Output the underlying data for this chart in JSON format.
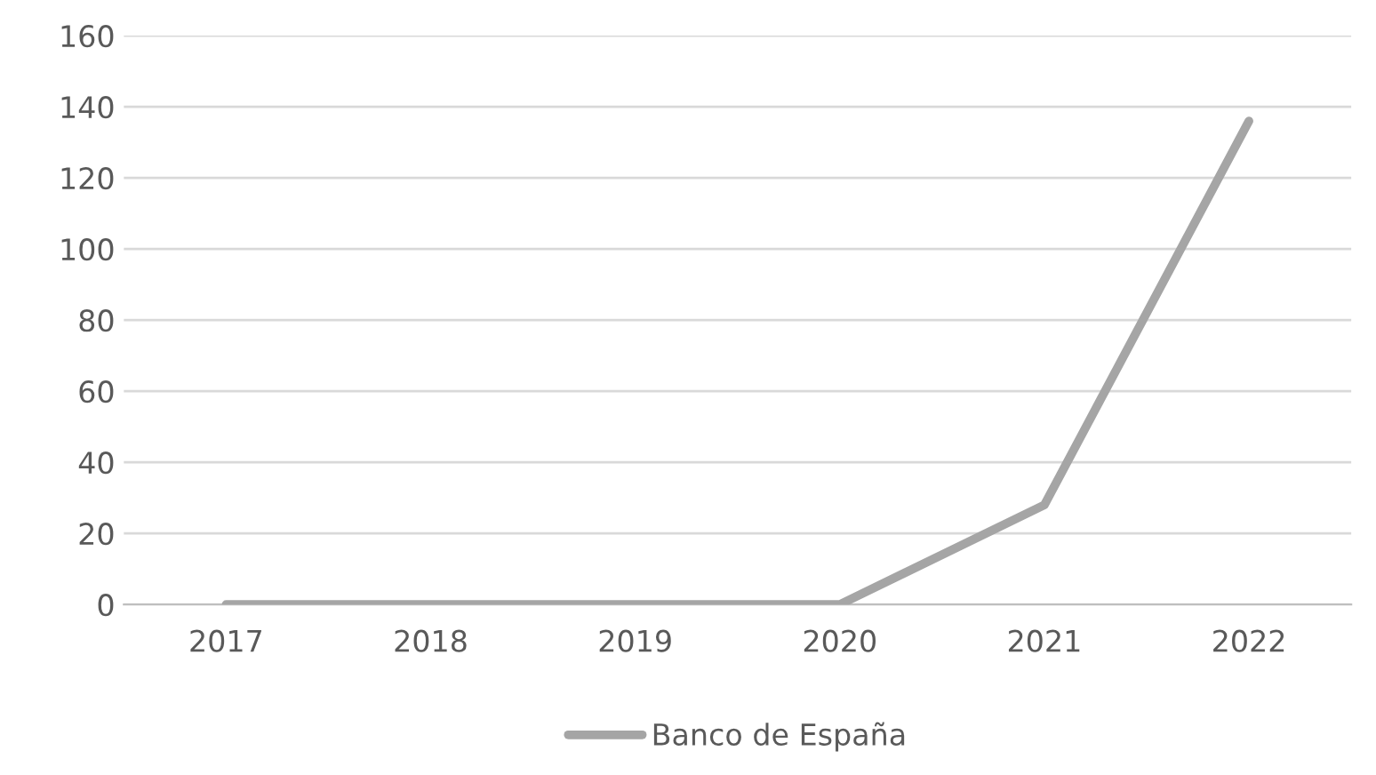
{
  "chart_data": {
    "type": "line",
    "categories": [
      "2017",
      "2018",
      "2019",
      "2020",
      "2021",
      "2022"
    ],
    "series": [
      {
        "name": "Banco de España",
        "color": "#a5a5a5",
        "values": [
          0,
          0,
          0,
          0,
          28,
          136
        ]
      }
    ],
    "ylim": [
      0,
      160
    ],
    "yticks": [
      0,
      20,
      40,
      60,
      80,
      100,
      120,
      140,
      160
    ],
    "grid": "y",
    "legend": "bottom",
    "marker": "none",
    "line_style": "solid"
  }
}
